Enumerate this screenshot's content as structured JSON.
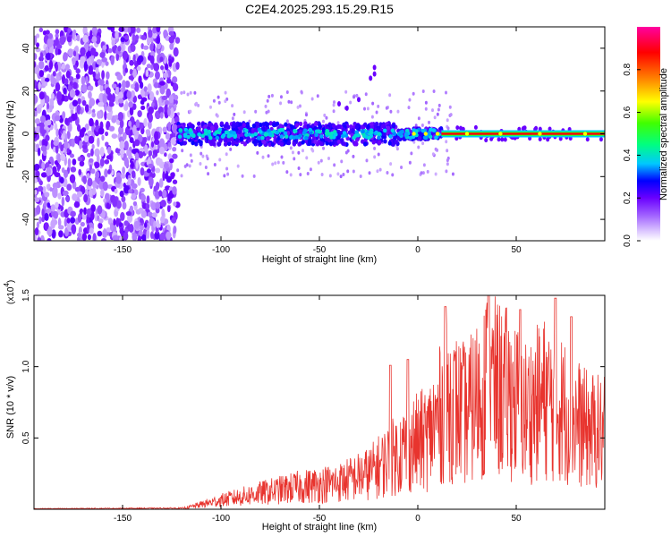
{
  "title": "C2E4.2025.293.15.29.R15",
  "chart_data": [
    {
      "type": "heatmap",
      "xlabel": "Height of straight line (km)",
      "ylabel": "Frequency (Hz)",
      "xlim": [
        -195,
        95
      ],
      "ylim": [
        -50,
        50
      ],
      "x_ticks": [
        "-150",
        "-100",
        "-50",
        "0",
        "50"
      ],
      "x_tick_values": [
        -150,
        -100,
        -50,
        0,
        50
      ],
      "y_ticks": [
        "-40",
        "-20",
        "0",
        "20",
        "40"
      ],
      "y_tick_values": [
        -40,
        -20,
        0,
        20,
        40
      ],
      "colorbar": {
        "label": "Normalized spectral amplitude",
        "range": [
          0,
          1
        ],
        "ticks": [
          "0.0",
          "0.2",
          "0.4",
          "0.6",
          "0.8"
        ],
        "tick_values": [
          0.0,
          0.2,
          0.4,
          0.6,
          0.8
        ],
        "colormap": "rainbow",
        "colors": [
          "#ffffff",
          "#a060ff",
          "#6a00ff",
          "#0000ff",
          "#00c8ff",
          "#00ff80",
          "#40ff00",
          "#ffff00",
          "#ff8000",
          "#ff0000",
          "#ff00a0"
        ]
      },
      "regions": [
        {
          "x_range": [
            -195,
            -122
          ],
          "description_value": "broadband noise",
          "amplitude": 0.15
        },
        {
          "x_range": [
            -122,
            12
          ],
          "frequency_center": 0,
          "frequency_halfwidth": 5,
          "amplitude": 0.35
        },
        {
          "x_range": [
            12,
            95
          ],
          "frequency_center": 0,
          "frequency_halfwidth": 1,
          "amplitude": 0.9
        }
      ],
      "grid": false
    },
    {
      "type": "line",
      "xlabel": "Height of straight line (km)",
      "ylabel": "SNR (10 * v/v)",
      "scale_label": "(x10",
      "scale_exp": "4",
      "scale_close": ")",
      "xlim": [
        -195,
        95
      ],
      "ylim": [
        0,
        1.5
      ],
      "x_ticks": [
        "-150",
        "-100",
        "-50",
        "0",
        "50"
      ],
      "x_tick_values": [
        -150,
        -100,
        -50,
        0,
        50
      ],
      "y_ticks": [
        "0.5",
        "1.0",
        "1.5"
      ],
      "y_tick_values": [
        0.5,
        1.0,
        1.5
      ],
      "line_color": "#e8342e",
      "envelope": {
        "x": [
          -195,
          -120,
          -115,
          -100,
          -80,
          -60,
          -40,
          -25,
          -15,
          -5,
          5,
          10,
          15,
          25,
          35,
          45,
          55,
          65,
          75,
          85,
          95
        ],
        "y": [
          0.005,
          0.01,
          0.03,
          0.1,
          0.18,
          0.25,
          0.3,
          0.4,
          0.55,
          0.7,
          0.8,
          1.0,
          1.2,
          1.05,
          1.4,
          1.3,
          1.1,
          1.25,
          1.1,
          0.9,
          0.85
        ]
      },
      "peaks": [
        {
          "x": -14,
          "y": 1.01
        },
        {
          "x": -5,
          "y": 1.05
        },
        {
          "x": 14,
          "y": 1.42
        },
        {
          "x": 36,
          "y": 1.5
        },
        {
          "x": 52,
          "y": 1.4
        },
        {
          "x": 70,
          "y": 1.48
        },
        {
          "x": 78,
          "y": 1.35
        }
      ],
      "grid": false
    }
  ]
}
